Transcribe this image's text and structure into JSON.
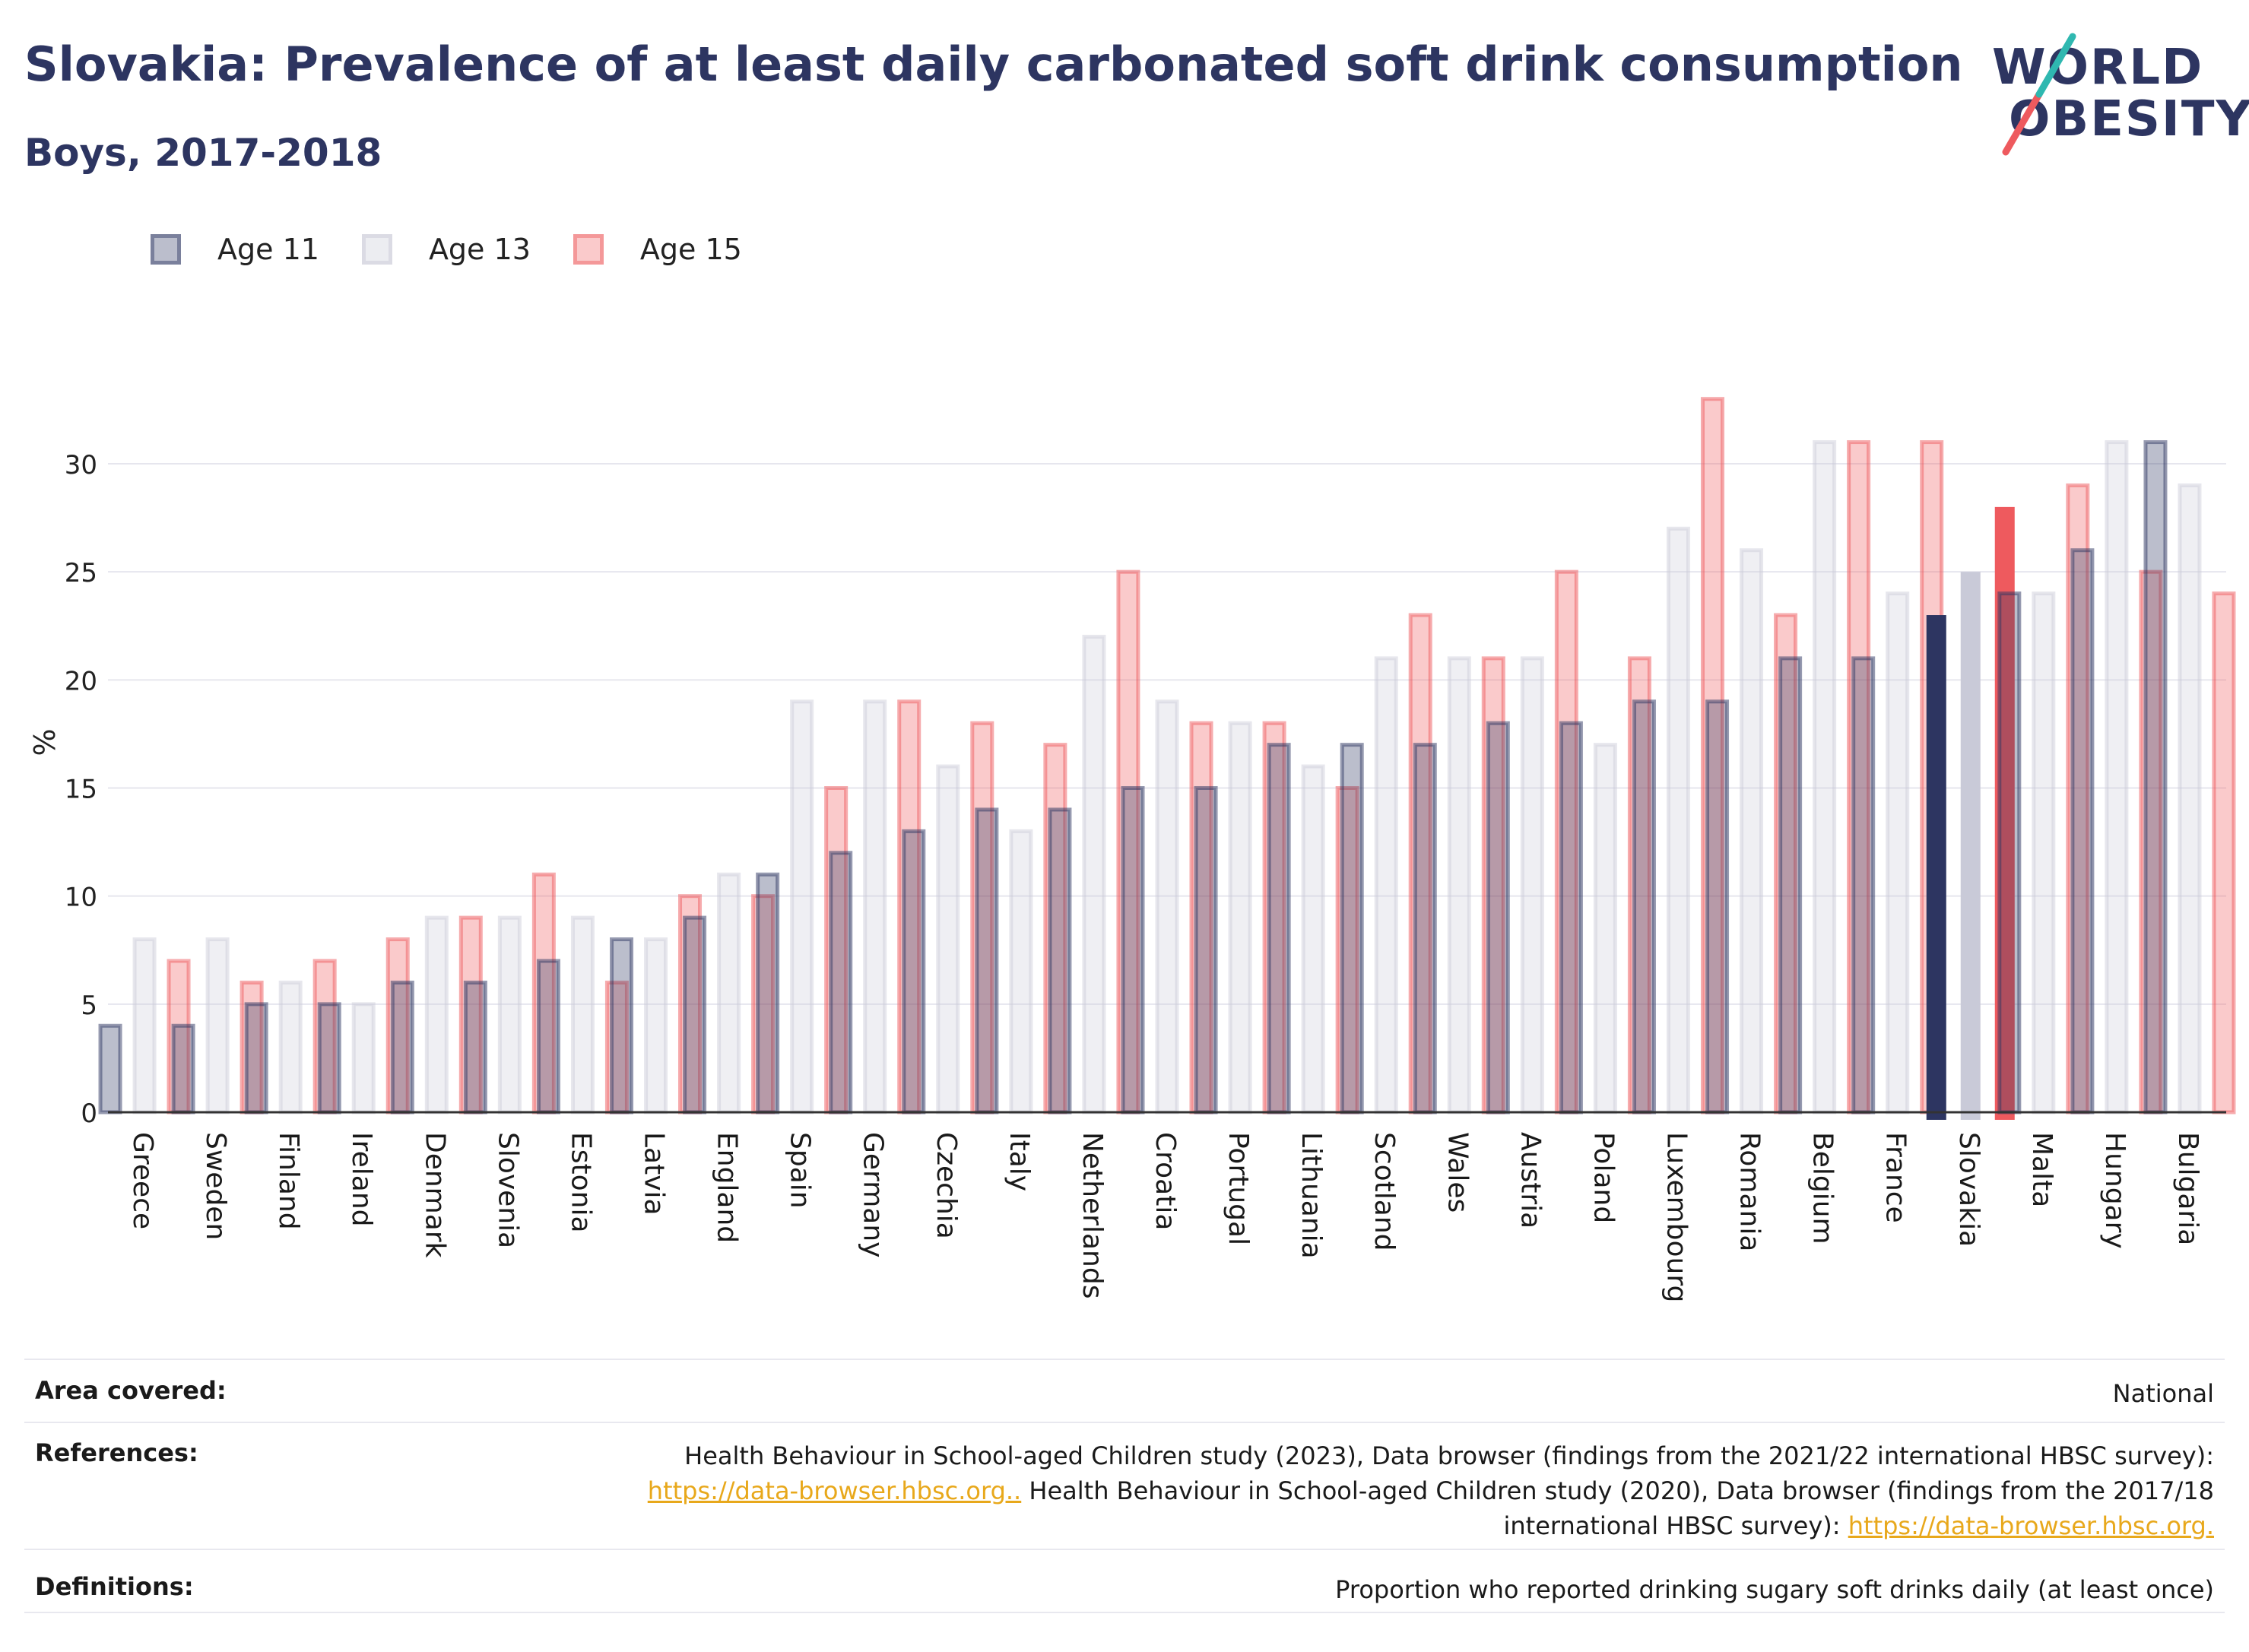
{
  "title": "Slovakia: Prevalence of at least daily carbonated soft drink consumption",
  "subtitle": "Boys, 2017-2018",
  "logo": {
    "line1": "WORLD",
    "line2": "OBESITY"
  },
  "legend": [
    {
      "label": "Age 11",
      "color": "#8b90ad"
    },
    {
      "label": "Age 13",
      "color": "#dcdde6"
    },
    {
      "label": "Age 15",
      "color": "#f5a3a5"
    }
  ],
  "colors": {
    "age11": "#2d3561",
    "age13": "#c9cad8",
    "age15": "#ee5a5e",
    "grid": "#e6e6ee",
    "axis": "#333333"
  },
  "highlight": "Slovakia",
  "chart_data": {
    "type": "bar",
    "ylabel": "%",
    "xlabel": "",
    "ylim": [
      0,
      35
    ],
    "yticks": [
      0,
      5,
      10,
      15,
      20,
      25,
      30
    ],
    "grid": true,
    "legend_position": "top-left",
    "categories": [
      "Greece",
      "Sweden",
      "Finland",
      "Ireland",
      "Denmark",
      "Slovenia",
      "Estonia",
      "Latvia",
      "England",
      "Spain",
      "Germany",
      "Czechia",
      "Italy",
      "Netherlands",
      "Croatia",
      "Portugal",
      "Lithuania",
      "Scotland",
      "Wales",
      "Austria",
      "Poland",
      "Luxembourg",
      "Romania",
      "Belgium",
      "France",
      "Slovakia",
      "Malta",
      "Hungary",
      "Bulgaria"
    ],
    "series": [
      {
        "name": "Age 11",
        "values": [
          4,
          4,
          5,
          5,
          6,
          6,
          7,
          8,
          9,
          11,
          12,
          13,
          14,
          14,
          15,
          15,
          17,
          17,
          17,
          18,
          18,
          19,
          19,
          21,
          21,
          23,
          24,
          26,
          31
        ]
      },
      {
        "name": "Age 13",
        "values": [
          8,
          8,
          6,
          5,
          9,
          9,
          9,
          8,
          11,
          19,
          19,
          16,
          13,
          22,
          19,
          18,
          16,
          21,
          21,
          21,
          17,
          27,
          26,
          31,
          24,
          25,
          24,
          31,
          29
        ]
      },
      {
        "name": "Age 15",
        "values": [
          7,
          6,
          7,
          8,
          9,
          11,
          6,
          10,
          10,
          15,
          19,
          18,
          17,
          25,
          18,
          18,
          15,
          23,
          21,
          25,
          21,
          33,
          23,
          31,
          31,
          28,
          29,
          25,
          24
        ]
      }
    ]
  },
  "info": {
    "area_key": "Area covered:",
    "area_value": "National",
    "ref_key": "References:",
    "ref_text1": "Health Behaviour in School-aged Children study (2023), Data browser (findings from the 2021/22 international HBSC survey):",
    "ref_link1": "https://data-browser.hbsc.org..",
    "ref_text2": " Health Behaviour in School-aged Children study (2020), Data browser (findings from the 2017/18",
    "ref_text3": "international HBSC survey): ",
    "ref_link2": "https://data-browser.hbsc.org.",
    "def_key": "Definitions:",
    "def_value": "Proportion who reported drinking sugary soft drinks daily (at least once)"
  }
}
